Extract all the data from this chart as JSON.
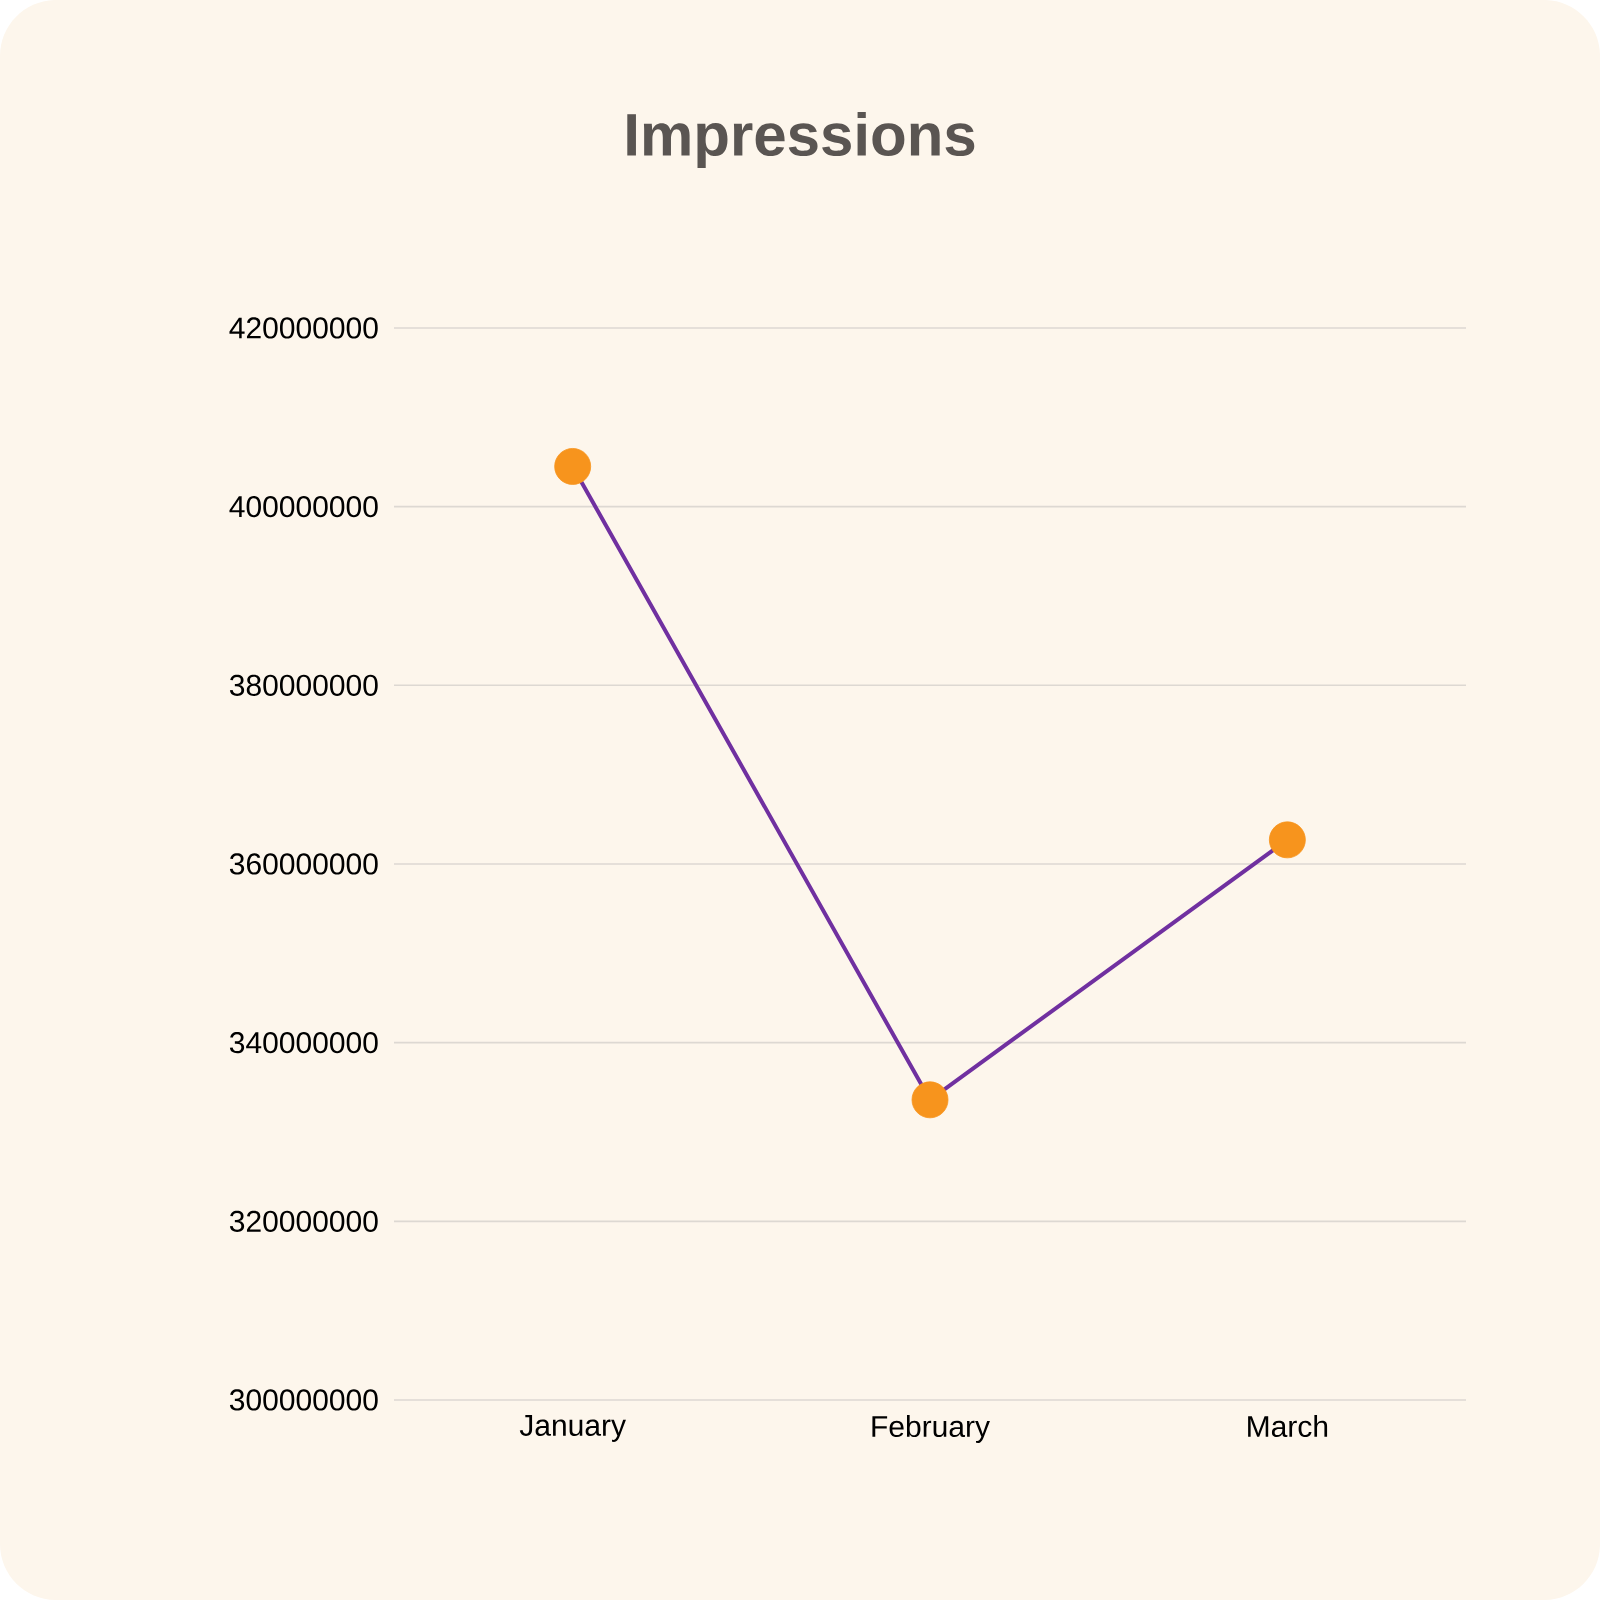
{
  "chart_data": {
    "type": "line",
    "title": "Impressions",
    "categories": [
      "January",
      "February",
      "March"
    ],
    "series": [
      {
        "color": "#7030a0",
        "colors": [
          "#f7941d",
          "#f7941d",
          "#f7941d"
        ],
        "values": [
          404500000,
          333600000,
          362700000
        ]
      }
    ],
    "ylim": [
      300000000,
      420000000
    ],
    "yticks": [
      300000000,
      320000000,
      340000000,
      360000000,
      380000000,
      400000000,
      420000000
    ],
    "grid": "y",
    "marker": "circle",
    "line_style": "solid"
  }
}
